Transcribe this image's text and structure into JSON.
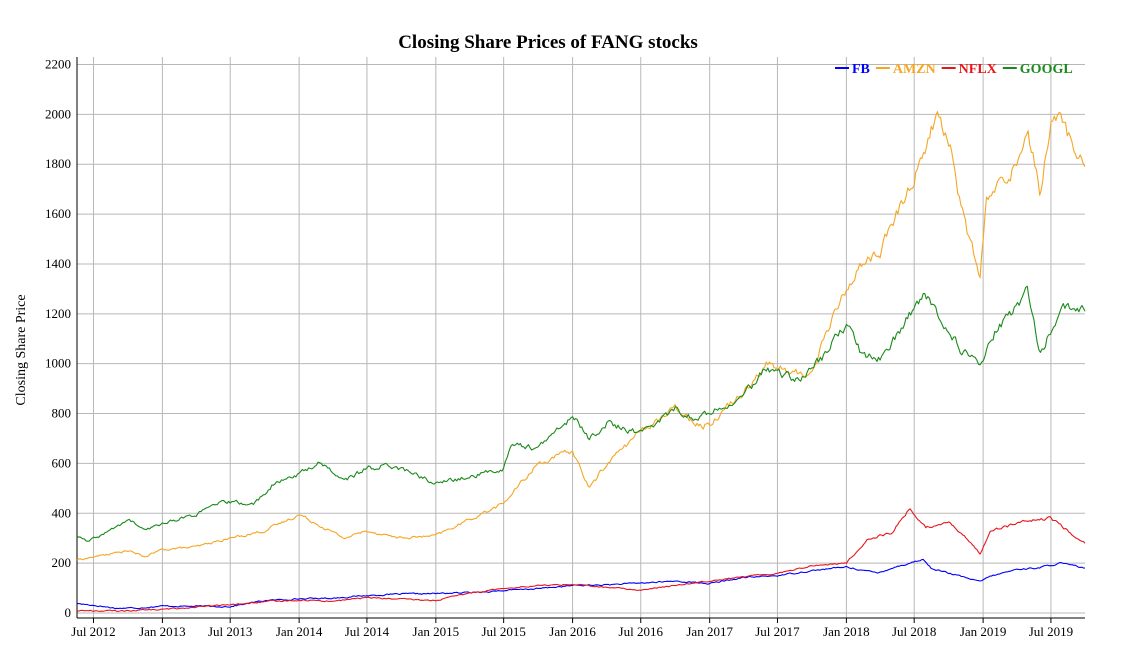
{
  "chart_data": {
    "type": "line",
    "title": "Closing Share Prices of FANG stocks",
    "xlabel": "",
    "ylabel": "Closing Share Price",
    "xlim": [
      "2012-05-18",
      "2019-09-30"
    ],
    "ylim": [
      -20,
      2230
    ],
    "grid": true,
    "legend_position": "top-right",
    "x_ticks": [
      {
        "date": "2012-07-01",
        "label": "Jul 2012"
      },
      {
        "date": "2013-01-01",
        "label": "Jan 2013"
      },
      {
        "date": "2013-07-01",
        "label": "Jul 2013"
      },
      {
        "date": "2014-01-01",
        "label": "Jan 2014"
      },
      {
        "date": "2014-07-01",
        "label": "Jul 2014"
      },
      {
        "date": "2015-01-01",
        "label": "Jan 2015"
      },
      {
        "date": "2015-07-01",
        "label": "Jul 2015"
      },
      {
        "date": "2016-01-01",
        "label": "Jan 2016"
      },
      {
        "date": "2016-07-01",
        "label": "Jul 2016"
      },
      {
        "date": "2017-01-01",
        "label": "Jan 2017"
      },
      {
        "date": "2017-07-01",
        "label": "Jul 2017"
      },
      {
        "date": "2018-01-01",
        "label": "Jan 2018"
      },
      {
        "date": "2018-07-01",
        "label": "Jul 2018"
      },
      {
        "date": "2019-01-01",
        "label": "Jan 2019"
      },
      {
        "date": "2019-07-01",
        "label": "Jul 2019"
      }
    ],
    "y_ticks": [
      0,
      200,
      400,
      600,
      800,
      1000,
      1200,
      1400,
      1600,
      1800,
      2000,
      2200
    ],
    "series": [
      {
        "name": "FB",
        "color": "#0000ff",
        "points": [
          [
            "2012-05-18",
            38
          ],
          [
            "2012-07-01",
            31
          ],
          [
            "2012-09-01",
            19
          ],
          [
            "2012-11-01",
            21
          ],
          [
            "2013-01-01",
            28
          ],
          [
            "2013-04-01",
            27
          ],
          [
            "2013-07-01",
            26
          ],
          [
            "2013-10-01",
            50
          ],
          [
            "2014-01-01",
            57
          ],
          [
            "2014-04-01",
            60
          ],
          [
            "2014-07-01",
            70
          ],
          [
            "2014-10-01",
            76
          ],
          [
            "2015-01-01",
            78
          ],
          [
            "2015-04-01",
            82
          ],
          [
            "2015-07-01",
            90
          ],
          [
            "2015-10-01",
            98
          ],
          [
            "2016-01-01",
            110
          ],
          [
            "2016-04-01",
            113
          ],
          [
            "2016-07-01",
            120
          ],
          [
            "2016-10-01",
            128
          ],
          [
            "2017-01-01",
            118
          ],
          [
            "2017-04-01",
            142
          ],
          [
            "2017-07-01",
            150
          ],
          [
            "2017-10-01",
            170
          ],
          [
            "2018-01-01",
            185
          ],
          [
            "2018-03-25",
            160
          ],
          [
            "2018-05-01",
            180
          ],
          [
            "2018-07-25",
            215
          ],
          [
            "2018-08-15",
            180
          ],
          [
            "2018-10-01",
            160
          ],
          [
            "2018-12-24",
            125
          ],
          [
            "2019-01-15",
            145
          ],
          [
            "2019-04-01",
            175
          ],
          [
            "2019-06-01",
            182
          ],
          [
            "2019-07-25",
            200
          ],
          [
            "2019-09-30",
            180
          ]
        ]
      },
      {
        "name": "AMZN",
        "color": "#f5a623",
        "points": [
          [
            "2012-05-18",
            213
          ],
          [
            "2012-07-01",
            225
          ],
          [
            "2012-10-01",
            250
          ],
          [
            "2012-11-15",
            225
          ],
          [
            "2013-01-01",
            255
          ],
          [
            "2013-04-01",
            265
          ],
          [
            "2013-07-01",
            300
          ],
          [
            "2013-10-01",
            330
          ],
          [
            "2014-01-01",
            395
          ],
          [
            "2014-02-15",
            360
          ],
          [
            "2014-05-01",
            300
          ],
          [
            "2014-07-01",
            330
          ],
          [
            "2014-10-01",
            300
          ],
          [
            "2015-01-01",
            310
          ],
          [
            "2015-04-01",
            375
          ],
          [
            "2015-07-01",
            440
          ],
          [
            "2015-10-01",
            600
          ],
          [
            "2016-01-01",
            650
          ],
          [
            "2016-02-15",
            500
          ],
          [
            "2016-04-01",
            600
          ],
          [
            "2016-07-01",
            730
          ],
          [
            "2016-10-01",
            820
          ],
          [
            "2016-12-15",
            750
          ],
          [
            "2017-01-01",
            760
          ],
          [
            "2017-04-01",
            890
          ],
          [
            "2017-06-01",
            1000
          ],
          [
            "2017-08-15",
            960
          ],
          [
            "2017-10-01",
            960
          ],
          [
            "2017-11-01",
            1100
          ],
          [
            "2018-01-01",
            1300
          ],
          [
            "2018-02-10",
            1400
          ],
          [
            "2018-04-01",
            1450
          ],
          [
            "2018-07-01",
            1750
          ],
          [
            "2018-09-01",
            2000
          ],
          [
            "2018-10-01",
            1900
          ],
          [
            "2018-11-15",
            1550
          ],
          [
            "2018-12-24",
            1350
          ],
          [
            "2019-01-10",
            1650
          ],
          [
            "2019-04-01",
            1800
          ],
          [
            "2019-05-01",
            1950
          ],
          [
            "2019-06-01",
            1700
          ],
          [
            "2019-07-10",
            2020
          ],
          [
            "2019-09-30",
            1790
          ]
        ]
      },
      {
        "name": "NFLX",
        "color": "#e8161b",
        "points": [
          [
            "2012-05-18",
            10
          ],
          [
            "2012-07-01",
            9
          ],
          [
            "2012-09-01",
            8
          ],
          [
            "2012-11-01",
            12
          ],
          [
            "2013-01-01",
            14
          ],
          [
            "2013-04-01",
            24
          ],
          [
            "2013-07-01",
            33
          ],
          [
            "2013-10-01",
            45
          ],
          [
            "2014-01-01",
            52
          ],
          [
            "2014-04-01",
            48
          ],
          [
            "2014-07-01",
            62
          ],
          [
            "2014-10-01",
            55
          ],
          [
            "2015-01-01",
            50
          ],
          [
            "2015-04-01",
            80
          ],
          [
            "2015-07-01",
            100
          ],
          [
            "2015-10-01",
            110
          ],
          [
            "2016-01-01",
            115
          ],
          [
            "2016-04-01",
            102
          ],
          [
            "2016-07-01",
            92
          ],
          [
            "2016-10-01",
            110
          ],
          [
            "2017-01-01",
            130
          ],
          [
            "2017-04-01",
            145
          ],
          [
            "2017-07-01",
            160
          ],
          [
            "2017-10-01",
            190
          ],
          [
            "2018-01-01",
            200
          ],
          [
            "2018-03-01",
            300
          ],
          [
            "2018-05-01",
            320
          ],
          [
            "2018-06-20",
            420
          ],
          [
            "2018-08-01",
            340
          ],
          [
            "2018-10-01",
            370
          ],
          [
            "2018-12-24",
            240
          ],
          [
            "2019-01-20",
            330
          ],
          [
            "2019-04-01",
            360
          ],
          [
            "2019-07-01",
            380
          ],
          [
            "2019-09-30",
            280
          ]
        ]
      },
      {
        "name": "GOOGL",
        "color": "#1b8a1b",
        "points": [
          [
            "2012-05-18",
            310
          ],
          [
            "2012-06-15",
            285
          ],
          [
            "2012-08-01",
            320
          ],
          [
            "2012-10-05",
            375
          ],
          [
            "2012-11-15",
            330
          ],
          [
            "2013-01-01",
            360
          ],
          [
            "2013-04-01",
            395
          ],
          [
            "2013-06-01",
            440
          ],
          [
            "2013-07-01",
            445
          ],
          [
            "2013-09-01",
            435
          ],
          [
            "2013-10-20",
            510
          ],
          [
            "2014-01-01",
            560
          ],
          [
            "2014-03-01",
            605
          ],
          [
            "2014-05-01",
            530
          ],
          [
            "2014-07-01",
            580
          ],
          [
            "2014-09-01",
            595
          ],
          [
            "2014-11-01",
            560
          ],
          [
            "2015-01-01",
            520
          ],
          [
            "2015-04-01",
            545
          ],
          [
            "2015-07-01",
            580
          ],
          [
            "2015-07-20",
            680
          ],
          [
            "2015-10-01",
            660
          ],
          [
            "2016-01-01",
            790
          ],
          [
            "2016-02-15",
            700
          ],
          [
            "2016-04-01",
            760
          ],
          [
            "2016-07-01",
            720
          ],
          [
            "2016-10-01",
            820
          ],
          [
            "2016-12-01",
            770
          ],
          [
            "2017-01-01",
            810
          ],
          [
            "2017-04-01",
            870
          ],
          [
            "2017-06-01",
            980
          ],
          [
            "2017-07-01",
            960
          ],
          [
            "2017-09-01",
            940
          ],
          [
            "2017-11-01",
            1030
          ],
          [
            "2018-01-01",
            1160
          ],
          [
            "2018-02-10",
            1040
          ],
          [
            "2018-04-01",
            1020
          ],
          [
            "2018-06-01",
            1150
          ],
          [
            "2018-07-25",
            1280
          ],
          [
            "2018-09-01",
            1200
          ],
          [
            "2018-11-01",
            1060
          ],
          [
            "2018-12-24",
            990
          ],
          [
            "2019-02-01",
            1120
          ],
          [
            "2019-04-29",
            1290
          ],
          [
            "2019-06-03",
            1040
          ],
          [
            "2019-07-30",
            1230
          ],
          [
            "2019-09-30",
            1210
          ]
        ]
      }
    ]
  }
}
